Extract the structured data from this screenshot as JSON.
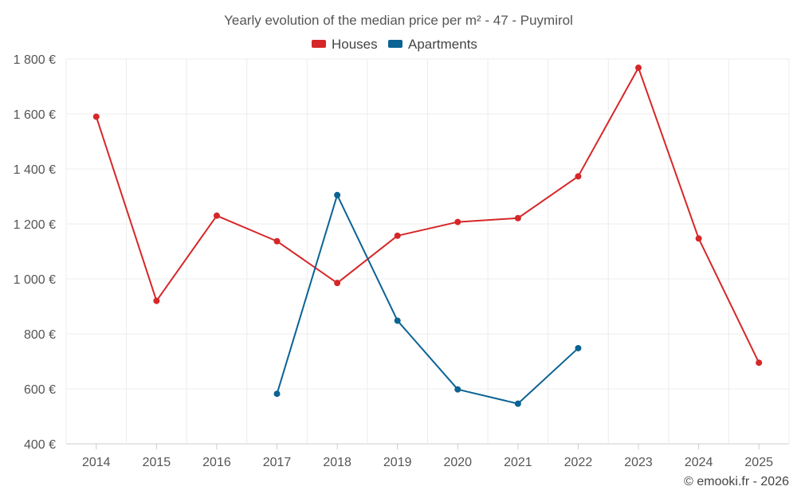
{
  "chart_data": {
    "type": "line",
    "title": "Yearly evolution of the median price per m² - 47 - Puymirol",
    "categories": [
      "2014",
      "2015",
      "2016",
      "2017",
      "2018",
      "2019",
      "2020",
      "2021",
      "2022",
      "2023",
      "2024",
      "2025"
    ],
    "series": [
      {
        "name": "Houses",
        "color": "#d62728",
        "values": [
          1590,
          920,
          1230,
          1137,
          985,
          1157,
          1207,
          1221,
          1373,
          1768,
          1147,
          695
        ]
      },
      {
        "name": "Apartments",
        "color": "#0b6394",
        "values": [
          null,
          null,
          null,
          582,
          1305,
          848,
          598,
          546,
          748,
          null,
          null,
          null
        ]
      }
    ],
    "y_ticks": [
      {
        "value": 400,
        "label": "400 €"
      },
      {
        "value": 600,
        "label": "600 €"
      },
      {
        "value": 800,
        "label": "800 €"
      },
      {
        "value": 1000,
        "label": "1 000 €"
      },
      {
        "value": 1200,
        "label": "1 200 €"
      },
      {
        "value": 1400,
        "label": "1 400 €"
      },
      {
        "value": 1600,
        "label": "1 600 €"
      },
      {
        "value": 1800,
        "label": "1 800 €"
      }
    ],
    "ylim": [
      400,
      1800
    ],
    "legend_position": "top-center",
    "grid": true,
    "credit": "© emooki.fr - 2026"
  }
}
